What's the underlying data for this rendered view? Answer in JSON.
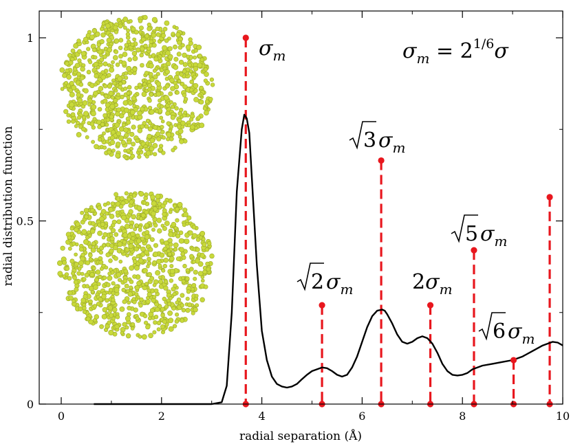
{
  "chart_data": {
    "type": "line",
    "xlabel": "radial separation (Å)",
    "ylabel": "radial distribution function",
    "xlim": [
      -0.5,
      10
    ],
    "ylim": [
      0,
      1.07
    ],
    "x_ticks": [
      0,
      2,
      4,
      6,
      8,
      10
    ],
    "y_ticks": [
      0,
      0.5,
      1
    ],
    "x_tick_labels": [
      "0",
      "2",
      "4",
      "6",
      "8",
      "10"
    ],
    "y_tick_labels": [
      "0",
      "0.5",
      "1"
    ],
    "grid": false,
    "series": [
      {
        "color": "#000000",
        "x": [
          0.65,
          1.0,
          2.0,
          3.0,
          3.2,
          3.3,
          3.4,
          3.5,
          3.6,
          3.65,
          3.7,
          3.75,
          3.8,
          3.9,
          4.0,
          4.1,
          4.2,
          4.3,
          4.4,
          4.5,
          4.6,
          4.7,
          4.8,
          4.9,
          5.0,
          5.1,
          5.2,
          5.3,
          5.4,
          5.5,
          5.6,
          5.7,
          5.8,
          5.9,
          6.0,
          6.1,
          6.2,
          6.3,
          6.4,
          6.45,
          6.5,
          6.6,
          6.7,
          6.8,
          6.9,
          7.0,
          7.1,
          7.2,
          7.3,
          7.4,
          7.5,
          7.6,
          7.7,
          7.8,
          7.9,
          8.0,
          8.1,
          8.2,
          8.4,
          8.6,
          8.8,
          9.0,
          9.2,
          9.4,
          9.6,
          9.8,
          9.9,
          10.0
        ],
        "y": [
          0.0,
          0.0,
          0.0,
          0.0,
          0.005,
          0.05,
          0.25,
          0.58,
          0.75,
          0.79,
          0.78,
          0.74,
          0.62,
          0.38,
          0.2,
          0.12,
          0.075,
          0.055,
          0.048,
          0.045,
          0.048,
          0.055,
          0.068,
          0.08,
          0.09,
          0.095,
          0.1,
          0.098,
          0.09,
          0.08,
          0.075,
          0.08,
          0.1,
          0.13,
          0.17,
          0.21,
          0.24,
          0.255,
          0.258,
          0.255,
          0.245,
          0.22,
          0.19,
          0.17,
          0.165,
          0.17,
          0.18,
          0.185,
          0.18,
          0.165,
          0.14,
          0.11,
          0.09,
          0.08,
          0.078,
          0.08,
          0.085,
          0.095,
          0.105,
          0.11,
          0.115,
          0.12,
          0.13,
          0.145,
          0.16,
          0.17,
          0.168,
          0.16
        ]
      }
    ],
    "markers": {
      "color": "#e8171e",
      "x": [
        3.68,
        5.2,
        6.38,
        7.36,
        8.23,
        9.02,
        9.74
      ],
      "y": [
        1.0,
        0.27,
        0.665,
        0.27,
        0.42,
        0.12,
        0.565
      ]
    },
    "annotations": [
      {
        "id": "sm",
        "x": 3.68,
        "text": "σm"
      },
      {
        "id": "s2",
        "x": 5.2,
        "text": "√2σm"
      },
      {
        "id": "s3",
        "x": 6.38,
        "text": "√3σm"
      },
      {
        "id": "s4",
        "x": 7.36,
        "text": "2σm"
      },
      {
        "id": "s5",
        "x": 8.23,
        "text": "√5σm"
      },
      {
        "id": "s6",
        "x": 9.02,
        "text": "√6σm"
      }
    ],
    "formula": {
      "lhs": "σm",
      "rhs": "= 2",
      "exp": "1/6",
      "tail": "σ"
    },
    "insets": [
      "upper sphere cluster of yellow-green atoms",
      "lower sphere cluster of yellow-green atoms"
    ],
    "particle_color": "#c8d93a"
  }
}
